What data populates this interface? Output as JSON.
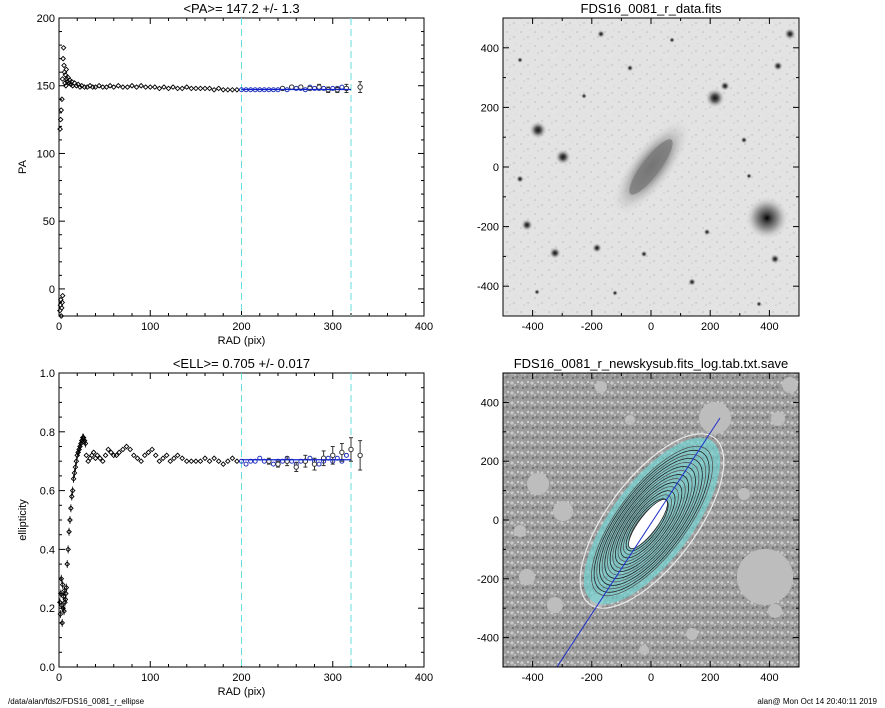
{
  "footer": {
    "path": "/data/alan/fds2/FDS16_0081_r_ellipse",
    "stamp": "alan@  Mon Oct 14 20:40:11 2019"
  },
  "colors": {
    "axis": "#000000",
    "dashed_line": "#66dddd",
    "fit_points": "#2233bb",
    "fit_line": "#1122cc",
    "model_isophote": "#6fd6d6"
  },
  "chart_data": [
    {
      "type": "scatter",
      "title": "<PA>= 147.2 +/-   1.3",
      "xlabel": "RAD (pix)",
      "ylabel": "PA",
      "xlim": [
        0,
        400
      ],
      "ylim": [
        -20,
        200
      ],
      "xticks": [
        0,
        100,
        200,
        300,
        400
      ],
      "yticks": [
        0,
        50,
        100,
        150,
        200
      ],
      "vlines": [
        200,
        320
      ],
      "mean_value": 147.2,
      "fit_range": [
        200,
        320
      ],
      "series": [
        {
          "style": "black-diamonds",
          "x": [
            1,
            1.5,
            2,
            2.5,
            3,
            3.5,
            4,
            1.2,
            1.8,
            2.4,
            3.2,
            3.8,
            4.5,
            5,
            5.5,
            6,
            6.5,
            7,
            7.5,
            8,
            8.5,
            9,
            10,
            11,
            12,
            13,
            14,
            15,
            17,
            19,
            21,
            23,
            25,
            28,
            31,
            34,
            37,
            40,
            44,
            48,
            52,
            56,
            60,
            65,
            70,
            75,
            80,
            85,
            90,
            95,
            100,
            105,
            110,
            115,
            120,
            125,
            130,
            135,
            140,
            145,
            150,
            155,
            160,
            165,
            170,
            175,
            180,
            185,
            190,
            195
          ],
          "y": [
            -16,
            -12,
            -8,
            -20,
            -14,
            -10,
            -5,
            118,
            125,
            132,
            140,
            155,
            170,
            178,
            165,
            160,
            152,
            158,
            150,
            162,
            155,
            153,
            156,
            152,
            154,
            151,
            153,
            150,
            152,
            150,
            151,
            149,
            150,
            149,
            149,
            150,
            149,
            149,
            150,
            149,
            149,
            150,
            149,
            150,
            149,
            149,
            150,
            149,
            150,
            149,
            149,
            149,
            148,
            149,
            148,
            149,
            148,
            148,
            149,
            148,
            148,
            148,
            148,
            148,
            147,
            148,
            147,
            147,
            147,
            147
          ]
        },
        {
          "style": "blue-fit-points",
          "x": [
            200,
            205,
            210,
            215,
            220,
            225,
            230,
            235,
            240,
            245,
            250,
            255,
            260,
            265,
            270,
            275,
            280,
            285,
            290,
            295,
            300,
            305,
            310
          ],
          "y": [
            147,
            147,
            147,
            147,
            147,
            147,
            147,
            147,
            147,
            148,
            147,
            149,
            148,
            148,
            147,
            149,
            148,
            148,
            148,
            147,
            148,
            148,
            149
          ]
        },
        {
          "style": "open-circles-errorbars",
          "x": [
            245,
            255,
            265,
            275,
            285,
            295,
            305,
            315,
            330
          ],
          "y": [
            148,
            149,
            149,
            148,
            149,
            147,
            147,
            148,
            149
          ],
          "err": [
            1,
            1,
            1,
            1,
            2,
            2,
            2,
            3,
            4
          ]
        }
      ]
    },
    {
      "type": "scatter",
      "title": "<ELL>= 0.705 +/-  0.017",
      "xlabel": "RAD (pix)",
      "ylabel": "ellipticity",
      "xlim": [
        0,
        400
      ],
      "ylim": [
        0,
        1
      ],
      "xticks": [
        0,
        100,
        200,
        300,
        400
      ],
      "yticks": [
        0.0,
        0.2,
        0.4,
        0.6,
        0.8,
        1.0
      ],
      "vlines": [
        200,
        320
      ],
      "mean_value": 0.705,
      "fit_range": [
        200,
        320
      ],
      "series": [
        {
          "style": "black-plus-diamonds",
          "x": [
            1,
            1.5,
            2,
            2.5,
            3,
            3.5,
            4,
            4.5,
            5,
            5.5,
            6,
            6.5,
            7,
            7.5,
            8,
            9,
            10,
            11,
            12,
            13,
            14,
            15,
            16,
            17,
            18,
            19,
            20,
            21,
            22,
            23,
            24,
            25,
            26,
            27,
            28,
            29,
            30,
            32,
            34,
            36,
            38,
            40,
            42,
            45,
            48,
            51,
            54,
            57,
            60,
            63,
            66,
            70,
            74,
            78,
            82,
            86,
            90,
            94,
            98,
            102,
            106,
            110,
            114,
            118,
            122,
            126,
            130,
            135,
            140,
            145,
            150,
            155,
            160,
            165,
            170,
            175,
            180,
            185,
            190,
            195
          ],
          "y": [
            0.22,
            0.18,
            0.25,
            0.3,
            0.21,
            0.15,
            0.28,
            0.2,
            0.24,
            0.19,
            0.26,
            0.22,
            0.23,
            0.25,
            0.27,
            0.35,
            0.4,
            0.46,
            0.5,
            0.54,
            0.58,
            0.6,
            0.64,
            0.66,
            0.68,
            0.7,
            0.72,
            0.73,
            0.74,
            0.75,
            0.76,
            0.77,
            0.78,
            0.78,
            0.77,
            0.76,
            0.72,
            0.7,
            0.71,
            0.72,
            0.73,
            0.71,
            0.72,
            0.71,
            0.7,
            0.72,
            0.74,
            0.73,
            0.72,
            0.72,
            0.73,
            0.74,
            0.75,
            0.74,
            0.72,
            0.71,
            0.7,
            0.72,
            0.73,
            0.74,
            0.72,
            0.7,
            0.71,
            0.72,
            0.7,
            0.71,
            0.72,
            0.71,
            0.7,
            0.7,
            0.7,
            0.7,
            0.71,
            0.7,
            0.71,
            0.7,
            0.69,
            0.7,
            0.71,
            0.7
          ]
        },
        {
          "style": "blue-fit-points",
          "x": [
            200,
            205,
            210,
            215,
            220,
            225,
            230,
            235,
            240,
            245,
            250,
            255,
            260,
            265,
            270,
            275,
            280,
            285,
            290,
            295,
            300,
            305,
            310,
            315
          ],
          "y": [
            0.7,
            0.69,
            0.7,
            0.7,
            0.71,
            0.7,
            0.7,
            0.69,
            0.7,
            0.7,
            0.71,
            0.7,
            0.69,
            0.7,
            0.7,
            0.71,
            0.7,
            0.69,
            0.7,
            0.71,
            0.7,
            0.71,
            0.7,
            0.72
          ]
        },
        {
          "style": "open-circles-errorbars",
          "x": [
            230,
            240,
            250,
            260,
            270,
            280,
            290,
            300,
            310,
            320,
            330
          ],
          "y": [
            0.7,
            0.69,
            0.7,
            0.68,
            0.7,
            0.69,
            0.71,
            0.72,
            0.73,
            0.74,
            0.72
          ],
          "err": [
            0.01,
            0.01,
            0.015,
            0.015,
            0.02,
            0.02,
            0.025,
            0.03,
            0.03,
            0.04,
            0.05
          ]
        }
      ]
    },
    {
      "type": "heatmap",
      "title": "FDS16_0081_r_data.fits",
      "xlim": [
        -500,
        500
      ],
      "ylim": [
        -500,
        500
      ],
      "xticks": [
        -400,
        -200,
        0,
        200,
        400
      ],
      "yticks": [
        -400,
        -200,
        0,
        200,
        400
      ],
      "colormap": "inverted grayscale"
    },
    {
      "type": "heatmap",
      "title": "FDS16_0081_r_newskysub.fits_log.tab.txt.save",
      "xlim": [
        -500,
        500
      ],
      "ylim": [
        -500,
        500
      ],
      "xticks": [
        -400,
        -200,
        0,
        200,
        400
      ],
      "yticks": [
        -400,
        -200,
        0,
        200,
        400
      ],
      "colormap": "grayscale log with isophote contours"
    }
  ]
}
